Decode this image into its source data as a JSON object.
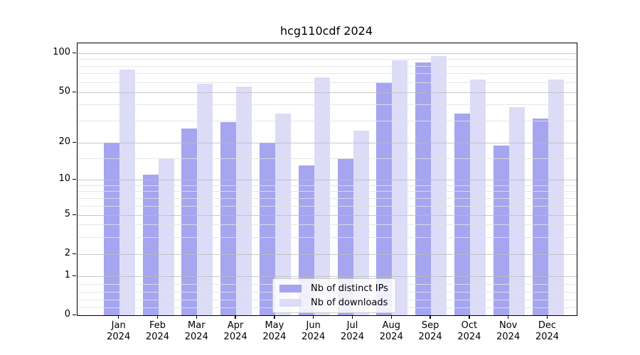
{
  "title": "hcg110cdf 2024",
  "legend": {
    "entries": [
      {
        "label": "Nb of distinct IPs",
        "color": "#a5a5f0"
      },
      {
        "label": "Nb of downloads",
        "color": "#dcdcf8"
      }
    ]
  },
  "chart_data": {
    "type": "bar",
    "title": "hcg110cdf 2024",
    "categories": [
      "Jan 2024",
      "Feb 2024",
      "Mar 2024",
      "Apr 2024",
      "May 2024",
      "Jun 2024",
      "Jul 2024",
      "Aug 2024",
      "Sep 2024",
      "Oct 2024",
      "Nov 2024",
      "Dec 2024"
    ],
    "series": [
      {
        "name": "Nb of distinct IPs",
        "color": "#a5a5f0",
        "values": [
          20,
          11,
          26,
          29,
          20,
          13,
          15,
          60,
          85,
          34,
          19,
          31
        ]
      },
      {
        "name": "Nb of downloads",
        "color": "#dcdcf8",
        "values": [
          75,
          15,
          58,
          55,
          34,
          65,
          25,
          88,
          95,
          63,
          38,
          63
        ]
      }
    ],
    "xlabel": "",
    "ylabel": "",
    "yaxis": {
      "scale": "symlog",
      "ticks": [
        0,
        1,
        2,
        5,
        10,
        20,
        50,
        100
      ],
      "ylim": [
        0,
        120
      ]
    },
    "grid": true,
    "legend_position": "lower center inside"
  }
}
